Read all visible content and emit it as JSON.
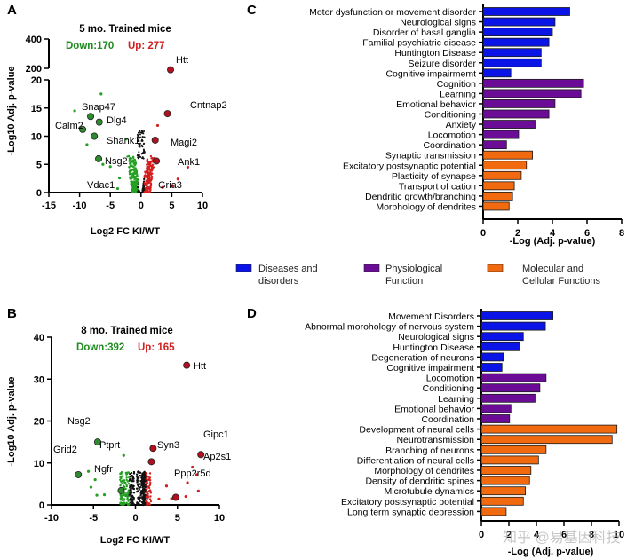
{
  "panels": {
    "A": {
      "letter": "A",
      "title": "5 mo. Trained mice",
      "down_label": "Down:170",
      "up_label": "Up: 277",
      "xlabel": "Log2 FC KI/WT",
      "ylabel": "-Log10 Adj. p-value"
    },
    "B": {
      "letter": "B",
      "title": "8 mo. Trained mice",
      "down_label": "Down:392",
      "up_label": "Up: 165",
      "xlabel": "Log2 FC KI/WT",
      "ylabel": "-Log10 Adj. p-value"
    },
    "C": {
      "letter": "C",
      "xlabel": "-Log (Adj. p-value)"
    },
    "D": {
      "letter": "D",
      "xlabel": "-Log (Adj. p-value)"
    }
  },
  "colors": {
    "down": "#22a022",
    "up": "#d41f1f",
    "highlight_down": "#2e8b2e",
    "highlight_up": "#b01020",
    "neutral": "#111111",
    "diseases": "#0a14e6",
    "physiological": "#6a0c96",
    "molecular": "#f26a10",
    "down_text": "#1e8c1e",
    "up_text": "#d22020"
  },
  "legend": [
    {
      "label_line1": "Diseases and",
      "label_line2": "disorders",
      "color_key": "diseases"
    },
    {
      "label_line1": "Physiological",
      "label_line2": "Function",
      "color_key": "physiological"
    },
    {
      "label_line1": "Molecular and",
      "label_line2": "Cellular Functions",
      "color_key": "molecular"
    }
  ],
  "watermark": "知乎 @易基因科技",
  "chart_data": [
    {
      "id": "A",
      "type": "scatter",
      "title": "5 mo. Trained mice",
      "xlabel": "Log2 FC KI/WT",
      "ylabel": "-Log10 Adj. p-value",
      "xlim": [
        -15,
        10
      ],
      "xticks": [
        -15,
        -10,
        -5,
        0,
        5,
        10
      ],
      "ylim_lower": [
        0,
        20
      ],
      "yticks_lower": [
        0,
        5,
        10,
        15,
        20
      ],
      "ylim_upper": [
        200,
        400
      ],
      "yticks_upper": [
        200,
        400
      ],
      "counts": {
        "down": 170,
        "up": 277
      },
      "highlighted": [
        {
          "gene": "Htt",
          "x": 4.8,
          "y": 190,
          "dir": "up"
        },
        {
          "gene": "Cntnap2",
          "x": 4.3,
          "y": 14,
          "dir": "up"
        },
        {
          "gene": "Magi2",
          "x": 2.3,
          "y": 9.3,
          "dir": "up"
        },
        {
          "gene": "Ank1",
          "x": 2.5,
          "y": 5.6,
          "dir": "up"
        },
        {
          "gene": "Snap47",
          "x": -8.2,
          "y": 13.5,
          "dir": "down"
        },
        {
          "gene": "Dlg4",
          "x": -6.8,
          "y": 12.5,
          "dir": "down"
        },
        {
          "gene": "Calm2",
          "x": -9.5,
          "y": 11.2,
          "dir": "down"
        },
        {
          "gene": "Shank1",
          "x": -7.6,
          "y": 10,
          "dir": "down"
        },
        {
          "gene": "Nsg2",
          "x": -6.9,
          "y": 6,
          "dir": "down"
        }
      ],
      "unlabeled_points": [
        {
          "x": -6.5,
          "y": 17.5,
          "dir": "down"
        },
        {
          "x": -10.8,
          "y": 14.5,
          "dir": "down"
        },
        {
          "x": -8.8,
          "y": 8.5,
          "dir": "down"
        },
        {
          "x": -6.2,
          "y": 5.0,
          "dir": "down"
        },
        {
          "x": -5.0,
          "y": 4.6,
          "dir": "down"
        },
        {
          "x": -3.5,
          "y": 2.6,
          "dir": "down"
        },
        {
          "x": -3.8,
          "y": 0.7,
          "dir": "down"
        },
        {
          "x": -2.4,
          "y": 9.5,
          "dir": "down"
        },
        {
          "x": 7.6,
          "y": 4.5,
          "dir": "up"
        },
        {
          "x": 6.0,
          "y": 2.4,
          "dir": "up"
        },
        {
          "x": 2.7,
          "y": 11.9,
          "dir": "up"
        },
        {
          "x": 5.2,
          "y": 1.2,
          "dir": "up"
        },
        {
          "x": 3.5,
          "y": 0.9,
          "dir": "up"
        }
      ],
      "gene_labels": [
        {
          "gene": "Htt"
        },
        {
          "gene": "Cntnap2"
        },
        {
          "gene": "Magi2"
        },
        {
          "gene": "Ank1"
        },
        {
          "gene": "Gria3"
        },
        {
          "gene": "Snap47"
        },
        {
          "gene": "Dlg4"
        },
        {
          "gene": "Calm2"
        },
        {
          "gene": "Shank1"
        },
        {
          "gene": "Nsg2"
        },
        {
          "gene": "Vdac1"
        }
      ]
    },
    {
      "id": "B",
      "type": "scatter",
      "title": "8 mo. Trained mice",
      "xlabel": "Log2 FC KI/WT",
      "ylabel": "-Log10 Adj. p-value",
      "xlim": [
        -10,
        10
      ],
      "xticks": [
        -10,
        -5,
        0,
        5,
        10
      ],
      "ylim": [
        0,
        40
      ],
      "yticks": [
        0,
        10,
        20,
        30,
        40
      ],
      "counts": {
        "down": 392,
        "up": 165
      },
      "highlighted": [
        {
          "gene": "Htt",
          "x": 6.1,
          "y": 33.3,
          "dir": "up"
        },
        {
          "gene": "Syn3",
          "x": 2.1,
          "y": 13.5,
          "dir": "up"
        },
        {
          "gene": "",
          "x": 1.9,
          "y": 10.3,
          "dir": "up"
        },
        {
          "gene": "Ap2s1",
          "x": 7.8,
          "y": 12,
          "dir": "up"
        },
        {
          "gene": "",
          "x": 4.8,
          "y": 1.8,
          "dir": "up"
        },
        {
          "gene": "Ptprt",
          "x": -4.5,
          "y": 15,
          "dir": "down"
        },
        {
          "gene": "",
          "x": -6.8,
          "y": 7.2,
          "dir": "down"
        },
        {
          "gene": "",
          "x": -1.7,
          "y": 3.4,
          "dir": "down"
        }
      ],
      "unlabeled_points": [
        {
          "x": -5.6,
          "y": 8.0,
          "dir": "down"
        },
        {
          "x": -4.8,
          "y": 6.0,
          "dir": "down"
        },
        {
          "x": -4.6,
          "y": 2.3,
          "dir": "down"
        },
        {
          "x": -3.7,
          "y": 2.4,
          "dir": "down"
        },
        {
          "x": -5.3,
          "y": 4.2,
          "dir": "down"
        },
        {
          "x": -1.4,
          "y": 11.8,
          "dir": "down"
        },
        {
          "x": 3.7,
          "y": 4.5,
          "dir": "up"
        },
        {
          "x": 6.8,
          "y": 9.0,
          "dir": "up"
        },
        {
          "x": 7.3,
          "y": 7.2,
          "dir": "up"
        },
        {
          "x": 6.2,
          "y": 5.3,
          "dir": "up"
        },
        {
          "x": 4.3,
          "y": 1.5,
          "dir": "up"
        },
        {
          "x": 6.0,
          "y": 2.0,
          "dir": "up"
        },
        {
          "x": 2.8,
          "y": 1.4,
          "dir": "up"
        },
        {
          "x": 7.5,
          "y": 3.3,
          "dir": "up"
        }
      ],
      "gene_labels": [
        {
          "gene": "Htt"
        },
        {
          "gene": "Gipc1"
        },
        {
          "gene": "Syn3"
        },
        {
          "gene": "Ap2s1"
        },
        {
          "gene": "Ppp2r5d"
        },
        {
          "gene": "Nsg2"
        },
        {
          "gene": "Grid2"
        },
        {
          "gene": "Ptprt"
        },
        {
          "gene": "Ngfr"
        }
      ]
    },
    {
      "id": "C",
      "type": "bar",
      "orientation": "horizontal",
      "xlabel": "-Log (Adj. p-value)",
      "xlim": [
        0,
        8
      ],
      "xticks": [
        0,
        2,
        4,
        6,
        8
      ],
      "categories": [
        "Motor dysfunction or movement disorder",
        "Neurological signs",
        "Disorder of basal ganglia",
        "Familial psychiatric disease",
        "Huntington Disease",
        "Seizure disorder",
        "Cognitive impairmemt",
        "Cognition",
        "Learning",
        "Emotional behavior",
        "Conditioning",
        "Anxiety",
        "Locomotion",
        "Coordination",
        "Synaptic transmission",
        "Excitatory postsynaptic potential",
        "Plasticity of synapse",
        "Transport of cation",
        "Dendritic growth/branching",
        "Morphology of dendrites"
      ],
      "values": [
        5.0,
        4.15,
        4.0,
        3.8,
        3.35,
        3.35,
        1.6,
        5.8,
        5.65,
        4.15,
        3.8,
        3.0,
        2.05,
        1.35,
        2.85,
        2.5,
        2.2,
        1.8,
        1.7,
        1.5
      ],
      "groups": [
        "diseases",
        "diseases",
        "diseases",
        "diseases",
        "diseases",
        "diseases",
        "diseases",
        "physiological",
        "physiological",
        "physiological",
        "physiological",
        "physiological",
        "physiological",
        "physiological",
        "molecular",
        "molecular",
        "molecular",
        "molecular",
        "molecular",
        "molecular"
      ]
    },
    {
      "id": "D",
      "type": "bar",
      "orientation": "horizontal",
      "xlabel": "-Log (Adj. p-value)",
      "xlim": [
        0,
        10
      ],
      "xticks": [
        0,
        2,
        4,
        6,
        8,
        10
      ],
      "categories": [
        "Movement Disorders",
        "Abnormal morohology of nervous system",
        "Neurological signs",
        "Huntington Disease",
        "Degeneration of neurons",
        "Cognitive impairment",
        "Locomotion",
        "Conditioning",
        "Learning",
        "Emotional behavior",
        "Coordination",
        "Development of neural cells",
        "Neurotransmission",
        "Branching of neurons",
        "Differentiation of neural cells",
        "Morphology of dendrites",
        "Density of dendritic spines",
        "Microtubule dynamics",
        "Excitatory postsynaptic potential",
        "Long term synaptic depression"
      ],
      "values": [
        5.2,
        4.65,
        3.05,
        2.8,
        1.6,
        1.5,
        4.7,
        4.25,
        3.9,
        2.15,
        2.05,
        9.85,
        9.5,
        4.7,
        4.15,
        3.6,
        3.5,
        3.2,
        3.05,
        1.8
      ],
      "groups": [
        "diseases",
        "diseases",
        "diseases",
        "diseases",
        "diseases",
        "diseases",
        "physiological",
        "physiological",
        "physiological",
        "physiological",
        "physiological",
        "molecular",
        "molecular",
        "molecular",
        "molecular",
        "molecular",
        "molecular",
        "molecular",
        "molecular",
        "molecular"
      ]
    }
  ]
}
